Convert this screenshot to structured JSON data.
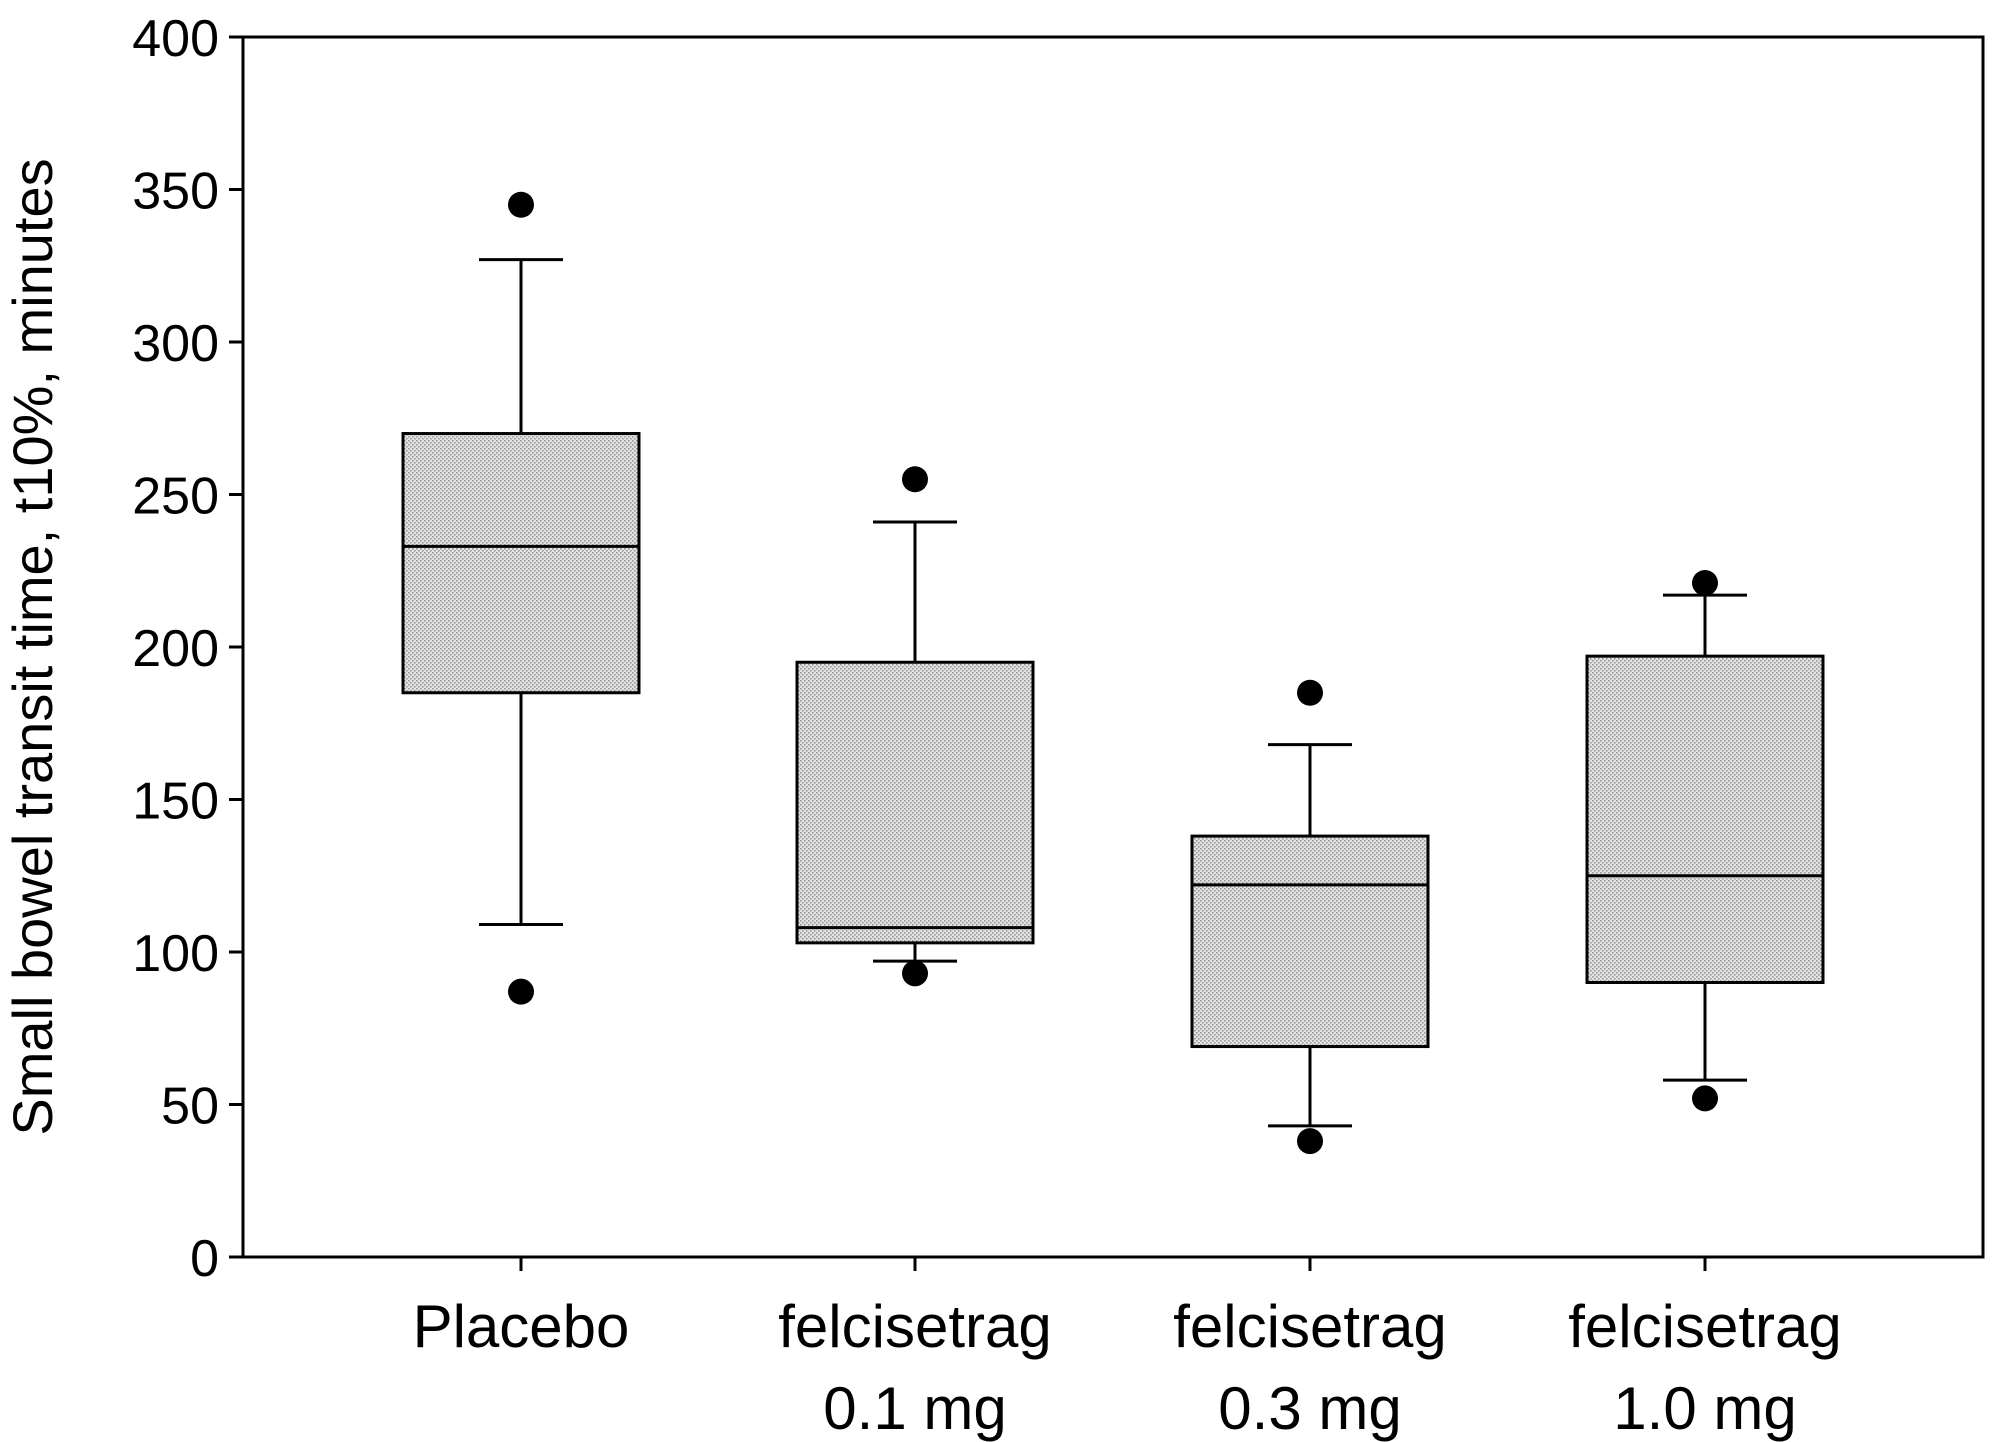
{
  "chart_data": {
    "type": "box",
    "title": "",
    "xlabel": "",
    "ylabel": "Small bowel transit time, t10%, minutes",
    "ylim": [
      0,
      400
    ],
    "yticks": [
      0,
      50,
      100,
      150,
      200,
      250,
      300,
      350,
      400
    ],
    "grid": false,
    "legend": "none",
    "box_fill": "#d9d9d9",
    "line_color": "#000000",
    "categories": [
      {
        "lines": [
          "Placebo"
        ]
      },
      {
        "lines": [
          "felcisetrag",
          "0.1 mg"
        ]
      },
      {
        "lines": [
          "felcisetrag",
          "0.3 mg"
        ]
      },
      {
        "lines": [
          "felcisetrag",
          "1.0 mg"
        ]
      }
    ],
    "boxes": [
      {
        "whisker_low": 109,
        "q1": 185,
        "median": 233,
        "q3": 270,
        "whisker_high": 327,
        "outliers": [
          345,
          87
        ]
      },
      {
        "whisker_low": 97,
        "q1": 103,
        "median": 108,
        "q3": 195,
        "whisker_high": 241,
        "outliers": [
          255,
          93
        ]
      },
      {
        "whisker_low": 43,
        "q1": 69,
        "median": 122,
        "q3": 138,
        "whisker_high": 168,
        "outliers": [
          185,
          38
        ]
      },
      {
        "whisker_low": 58,
        "q1": 90,
        "median": 125,
        "q3": 197,
        "whisker_high": 217,
        "outliers": [
          221,
          52
        ]
      }
    ]
  }
}
